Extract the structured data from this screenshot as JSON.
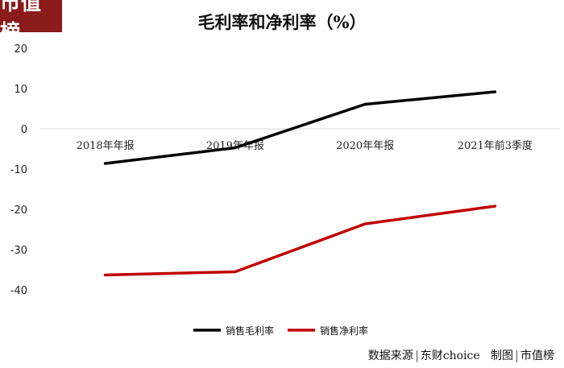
{
  "logo": {
    "text": "市值榜"
  },
  "footer": {
    "source_label": "数据来源",
    "source_value": "东财choice",
    "made_label": "制图",
    "made_value": "市值榜"
  },
  "colors": {
    "series1": "#000000",
    "series2": "#c00000",
    "logo_bg": "#8b1a1a"
  },
  "chart_data": {
    "type": "line",
    "title": "毛利率和净利率（%）",
    "xlabel": "",
    "ylabel": "",
    "categories": [
      "2018年年报",
      "2019年年报",
      "2020年年报",
      "2021年前3季度"
    ],
    "yticks": [
      20,
      10,
      0,
      -10,
      -20,
      -30,
      -40
    ],
    "ylim": [
      -40,
      20
    ],
    "grid": false,
    "legend_position": "bottom",
    "series": [
      {
        "name": "销售毛利率",
        "values": [
          -8.6,
          -4.7,
          6.1,
          9.2
        ],
        "color": "#000000"
      },
      {
        "name": "销售净利率",
        "values": [
          -36.3,
          -35.5,
          -23.6,
          -19.2
        ],
        "color": "#c00000"
      }
    ]
  }
}
